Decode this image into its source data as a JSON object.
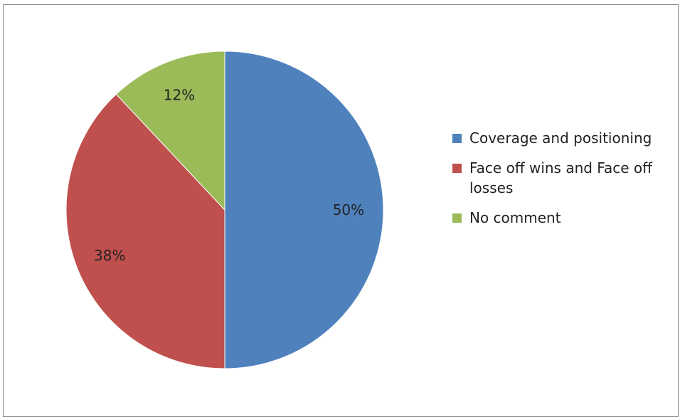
{
  "chart_data": {
    "type": "pie",
    "slices": [
      {
        "label": "Coverage and positioning",
        "value": 50,
        "display": "50%",
        "color": "#4F81BD"
      },
      {
        "label": "Face off wins and Face off losses",
        "value": 38,
        "display": "38%",
        "color": "#C0504D"
      },
      {
        "label": "No comment",
        "value": 12,
        "display": "12%",
        "color": "#9BBB59"
      }
    ],
    "start_angle": "12 o'clock",
    "direction": "clockwise",
    "legend_position": "right"
  }
}
